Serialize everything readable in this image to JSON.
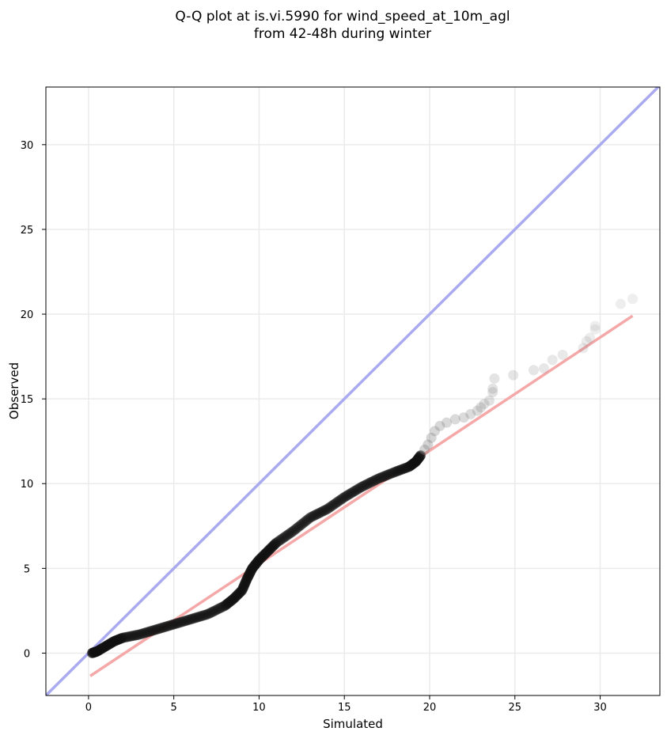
{
  "chart_data": {
    "type": "scatter",
    "title_lines": [
      "Q-Q plot at is.vi.5990 for wind_speed_at_10m_agl",
      "from 42-48h during winter"
    ],
    "xlabel": "Simulated",
    "ylabel": "Observed",
    "xlim": [
      -2.5,
      33.5
    ],
    "ylim": [
      -2.5,
      33.4
    ],
    "xticks": [
      "0",
      "5",
      "10",
      "15",
      "20",
      "25",
      "30"
    ],
    "yticks": [
      "0",
      "5",
      "10",
      "15",
      "20",
      "25",
      "30"
    ],
    "grid": true,
    "reference_line": {
      "name": "1:1",
      "color": "#aaaaf0",
      "x": [
        -2.5,
        33.5
      ],
      "y": [
        -2.5,
        33.5
      ]
    },
    "fit_line": {
      "color": "#f5a8a8",
      "x": [
        0.1,
        31.9
      ],
      "y": [
        -1.35,
        19.9
      ]
    },
    "point_color": "#111111",
    "dense_curve": {
      "x": [
        0.2,
        0.5,
        1.0,
        1.5,
        2.0,
        3.0,
        4.0,
        5.0,
        6.0,
        7.0,
        8.0,
        8.5,
        9.0,
        9.3,
        9.6,
        10.0,
        10.5,
        11.0,
        12.0,
        13.0,
        14.0,
        15.0,
        16.0,
        17.0,
        18.0,
        18.8,
        19.2,
        19.5
      ],
      "y": [
        0.0,
        0.1,
        0.4,
        0.7,
        0.9,
        1.1,
        1.4,
        1.7,
        2.0,
        2.3,
        2.8,
        3.2,
        3.7,
        4.4,
        5.0,
        5.5,
        6.0,
        6.5,
        7.2,
        8.0,
        8.5,
        9.2,
        9.8,
        10.3,
        10.7,
        11.0,
        11.3,
        11.7
      ]
    },
    "tail_points": {
      "x": [
        19.7,
        19.9,
        20.1,
        20.3,
        20.6,
        21.0,
        21.5,
        22.0,
        22.4,
        22.8,
        23.0,
        23.2,
        23.5,
        23.7,
        23.7,
        23.8,
        24.9,
        26.1,
        26.7,
        27.2,
        27.8,
        29.0,
        29.2,
        29.4,
        29.7,
        29.7,
        31.2,
        31.9
      ],
      "y": [
        12.0,
        12.3,
        12.7,
        13.1,
        13.4,
        13.6,
        13.8,
        13.9,
        14.1,
        14.3,
        14.5,
        14.7,
        14.9,
        15.4,
        15.6,
        16.2,
        16.4,
        16.7,
        16.8,
        17.3,
        17.6,
        18.0,
        18.4,
        18.6,
        19.1,
        19.3,
        20.6,
        20.9
      ]
    }
  }
}
